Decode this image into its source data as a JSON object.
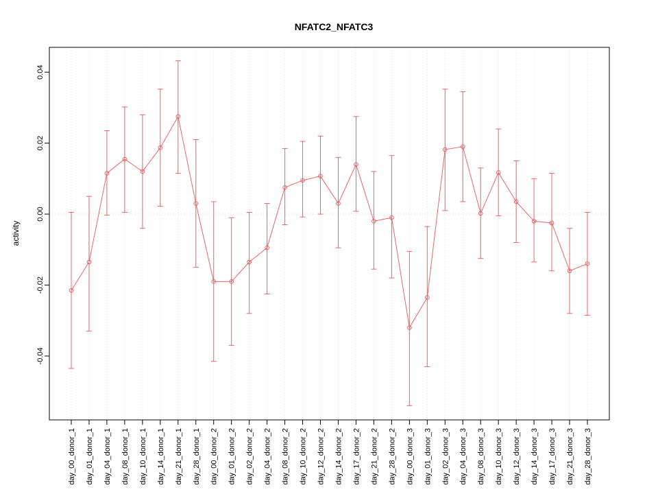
{
  "chart_data": {
    "type": "line",
    "title": "NFATC2_NFATC3",
    "xlabel": "",
    "ylabel": "activity",
    "color": "#ee6363",
    "grid_color": "#d8d8d8",
    "grid": "vertical-dotted-per-category",
    "zero_line": true,
    "legend": "none",
    "ylim": [
      -0.058,
      0.047
    ],
    "yticks": [
      {
        "value": -0.04,
        "label": "-0.04"
      },
      {
        "value": -0.02,
        "label": "-0.02"
      },
      {
        "value": 0.0,
        "label": "0.00"
      },
      {
        "value": 0.02,
        "label": "0.02"
      },
      {
        "value": 0.04,
        "label": "0.04"
      }
    ],
    "categories": [
      "day_00_donor_1",
      "day_01_donor_1",
      "day_04_donor_1",
      "day_08_donor_1",
      "day_10_donor_1",
      "day_14_donor_1",
      "day_21_donor_1",
      "day_28_donor_1",
      "day_00_donor_2",
      "day_01_donor_2",
      "day_02_donor_2",
      "day_04_donor_2",
      "day_08_donor_2",
      "day_10_donor_2",
      "day_12_donor_2",
      "day_14_donor_2",
      "day_17_donor_2",
      "day_21_donor_2",
      "day_28_donor_2",
      "day_00_donor_3",
      "day_01_donor_3",
      "day_02_donor_3",
      "day_04_donor_3",
      "day_08_donor_3",
      "day_10_donor_3",
      "day_12_donor_3",
      "day_14_donor_3",
      "day_17_donor_3",
      "day_21_donor_3",
      "day_28_donor_3"
    ],
    "series": [
      {
        "name": "activity",
        "values": [
          -0.0215,
          -0.0135,
          0.0115,
          0.0155,
          0.012,
          0.0187,
          0.0275,
          0.003,
          -0.019,
          -0.019,
          -0.0135,
          -0.0095,
          0.0075,
          0.0095,
          0.0107,
          0.003,
          0.014,
          -0.002,
          -0.001,
          -0.032,
          -0.0235,
          0.0182,
          0.019,
          0.0002,
          0.0117,
          0.0035,
          -0.002,
          -0.0025,
          -0.016,
          -0.014
        ],
        "ci_lower": [
          -0.0435,
          -0.033,
          -0.0003,
          0.0005,
          -0.004,
          0.0022,
          0.0115,
          -0.015,
          -0.0415,
          -0.037,
          -0.028,
          -0.0225,
          -0.003,
          -0.0008,
          0.0,
          -0.0095,
          0.0008,
          -0.0155,
          -0.018,
          -0.054,
          -0.043,
          0.001,
          0.0035,
          -0.0125,
          -0.0005,
          -0.008,
          -0.0135,
          -0.016,
          -0.028,
          -0.0285
        ],
        "ci_upper": [
          0.0005,
          0.005,
          0.0235,
          0.0302,
          0.028,
          0.0352,
          0.0432,
          0.021,
          0.0035,
          -0.001,
          0.0005,
          0.003,
          0.0185,
          0.0205,
          0.022,
          0.016,
          0.0275,
          0.012,
          0.0165,
          -0.0105,
          -0.0035,
          0.0352,
          0.0345,
          0.013,
          0.024,
          0.015,
          0.01,
          0.0115,
          -0.004,
          0.0005
        ]
      }
    ]
  }
}
